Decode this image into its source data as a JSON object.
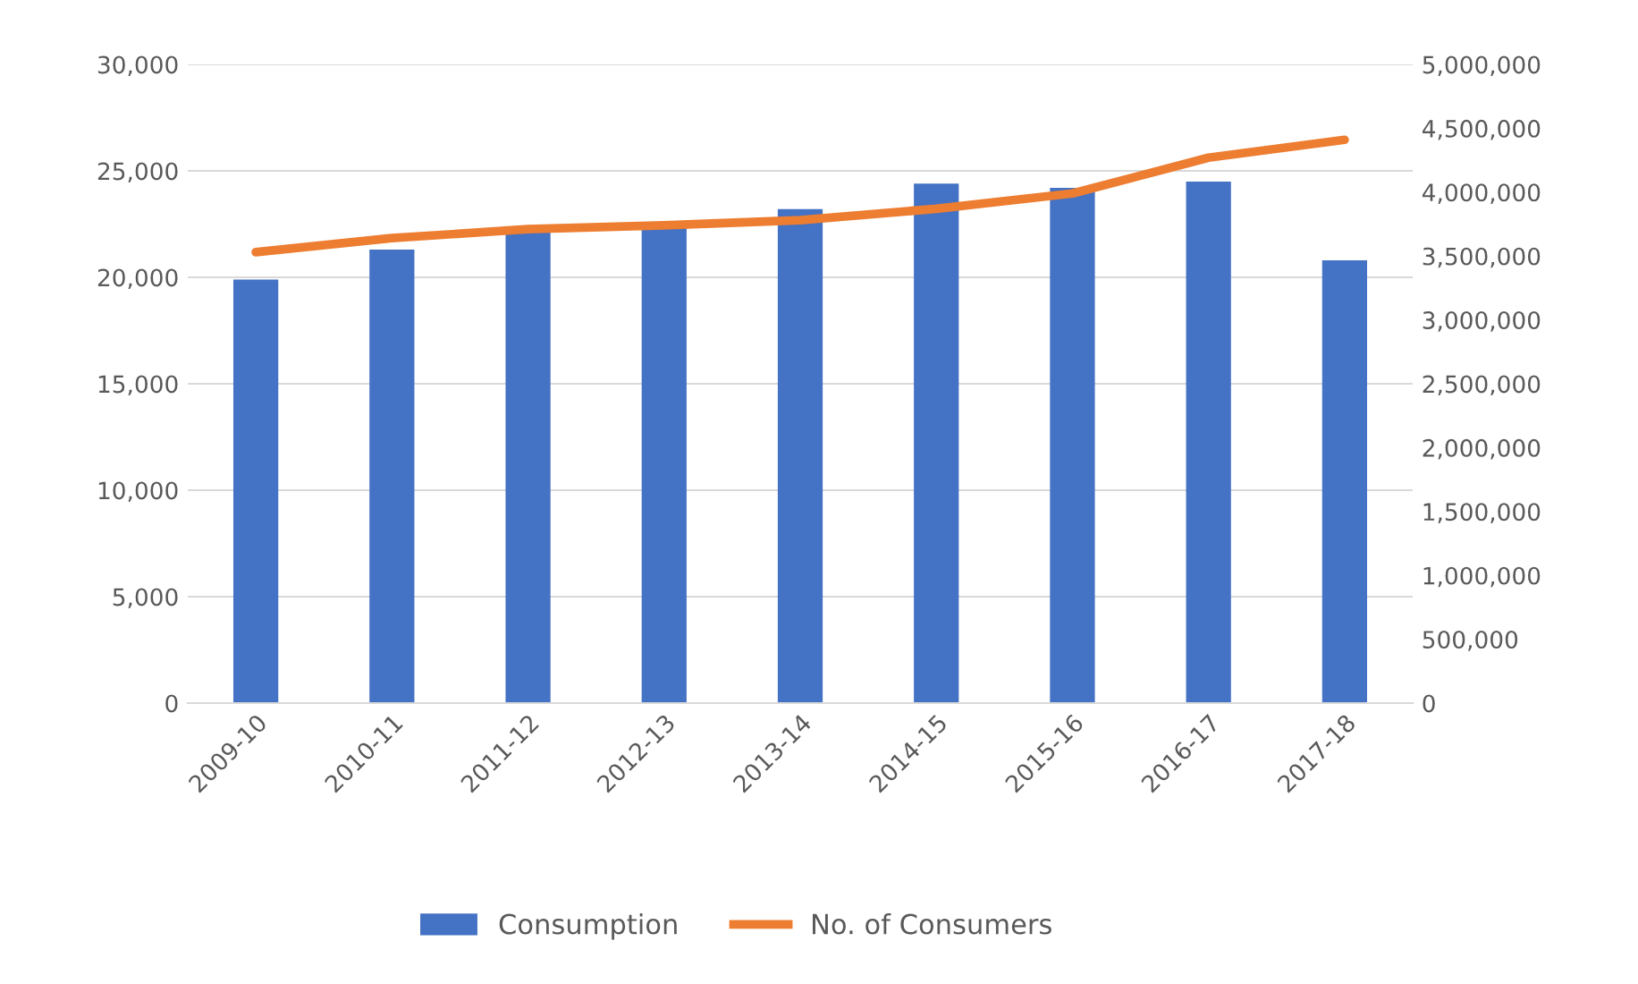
{
  "chart_data": {
    "type": "bar",
    "categories": [
      "2009-10",
      "2010-11",
      "2011-12",
      "2012-13",
      "2013-14",
      "2014-15",
      "2015-16",
      "2016-17",
      "2017-18"
    ],
    "series": [
      {
        "name": "Consumption",
        "color": "#4472c4",
        "values": [
          19900,
          21300,
          22100,
          22400,
          23200,
          24400,
          24200,
          24500,
          20800
        ]
      },
      {
        "name": "No. of Consumers",
        "type": "line",
        "axis": "y2",
        "color": "#ed7d31",
        "values": [
          3530000,
          3640000,
          3710000,
          3740000,
          3780000,
          3870000,
          3990000,
          4270000,
          4410000
        ]
      }
    ],
    "ylim": [
      0,
      30000
    ],
    "yticks": [
      {
        "value": 0,
        "label": "0"
      },
      {
        "value": 5000,
        "label": "5,000"
      },
      {
        "value": 10000,
        "label": "10,000"
      },
      {
        "value": 15000,
        "label": "15,000"
      },
      {
        "value": 20000,
        "label": "20,000"
      },
      {
        "value": 25000,
        "label": "25,000"
      },
      {
        "value": 30000,
        "label": "30,000"
      }
    ],
    "y2lim": [
      0,
      5000000
    ],
    "y2ticks": [
      {
        "value": 0,
        "label": "0"
      },
      {
        "value": 500000,
        "label": "500,000"
      },
      {
        "value": 1000000,
        "label": "1,000,000"
      },
      {
        "value": 1500000,
        "label": "1,500,000"
      },
      {
        "value": 2000000,
        "label": "2,000,000"
      },
      {
        "value": 2500000,
        "label": "2,500,000"
      },
      {
        "value": 3000000,
        "label": "3,000,000"
      },
      {
        "value": 3500000,
        "label": "3,500,000"
      },
      {
        "value": 4000000,
        "label": "4,000,000"
      },
      {
        "value": 4500000,
        "label": "4,500,000"
      },
      {
        "value": 5000000,
        "label": "5,000,000"
      }
    ],
    "grid": "y",
    "legend": "bottom"
  }
}
